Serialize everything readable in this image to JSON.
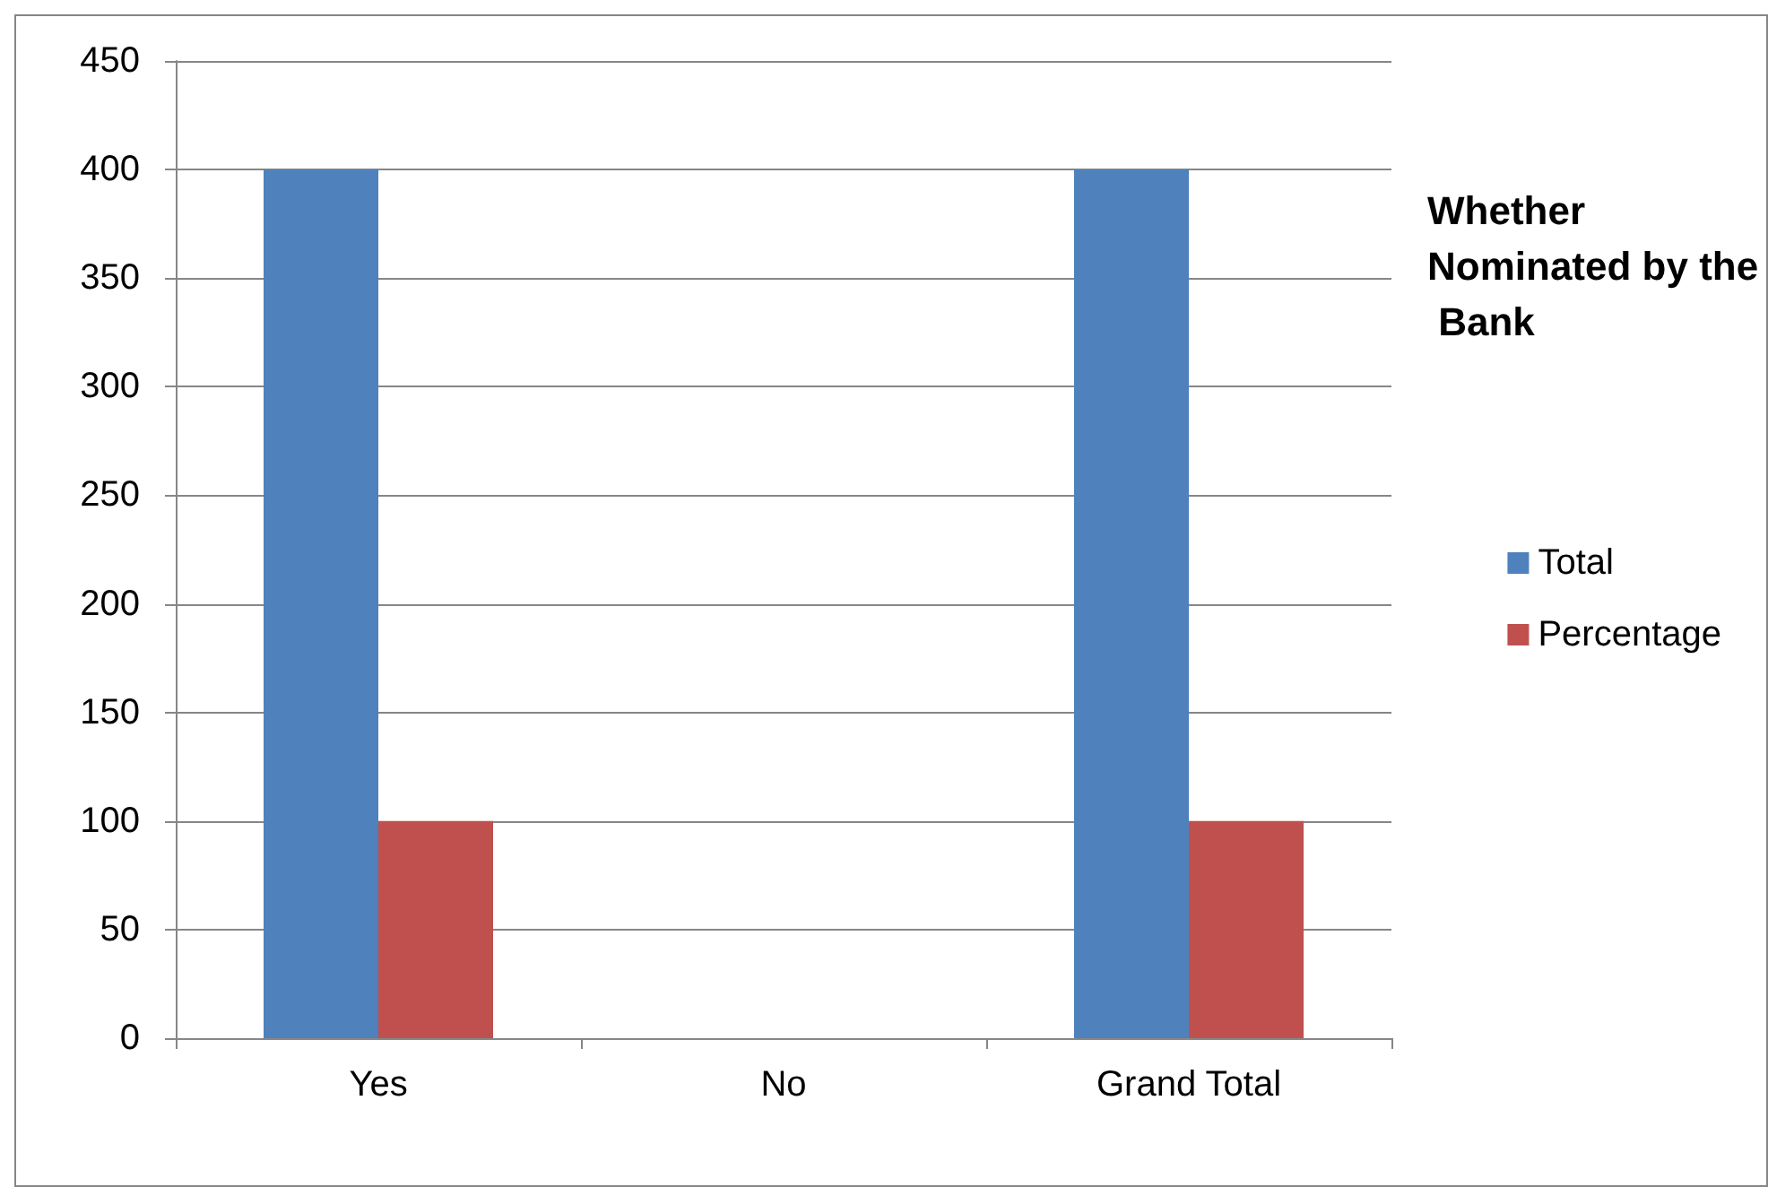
{
  "chart_data": {
    "type": "bar",
    "legend_title": "Whether Nominated by the Bank",
    "categories": [
      "Yes",
      "No",
      "Grand Total"
    ],
    "series": [
      {
        "name": "Total",
        "color": "#4f81bd",
        "values": [
          400,
          0,
          400
        ]
      },
      {
        "name": "Percentage",
        "color": "#c0504d",
        "values": [
          100,
          0,
          100
        ]
      }
    ],
    "ylim": [
      0,
      450
    ],
    "yticks": [
      0,
      50,
      100,
      150,
      200,
      250,
      300,
      350,
      400,
      450
    ],
    "grid": "y",
    "legend": "right"
  }
}
